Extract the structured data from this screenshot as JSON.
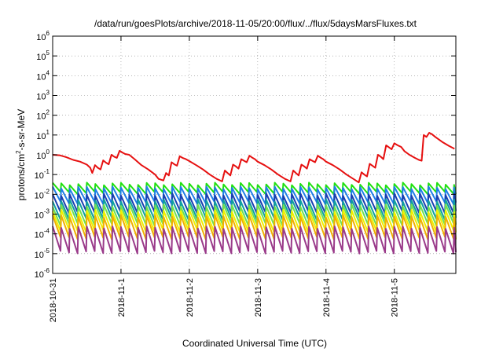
{
  "chart_data": {
    "type": "line",
    "title": "/data/run/goesPlots/archive/2018-11-05/20:00/flux/../flux/5daysMarsFluxes.txt",
    "xlabel": "Coordinated Universal Time (UTC)",
    "ylabel_parts": [
      "protons/cm",
      "2",
      "-s-sr-MeV"
    ],
    "yscale": "log",
    "ylim_exp": [
      -6,
      6
    ],
    "y_ticks": [
      {
        "base": "10",
        "exp": "-6"
      },
      {
        "base": "10",
        "exp": "-5"
      },
      {
        "base": "10",
        "exp": "-4"
      },
      {
        "base": "10",
        "exp": "-3"
      },
      {
        "base": "10",
        "exp": "-2"
      },
      {
        "base": "10",
        "exp": "-1"
      },
      {
        "base": "10",
        "exp": "0"
      },
      {
        "base": "10",
        "exp": "1"
      },
      {
        "base": "10",
        "exp": "2"
      },
      {
        "base": "10",
        "exp": "3"
      },
      {
        "base": "10",
        "exp": "4"
      },
      {
        "base": "10",
        "exp": "5"
      },
      {
        "base": "10",
        "exp": "6"
      }
    ],
    "x_ticks": [
      "2018-10-31",
      "2018-11-1",
      "2018-11-2",
      "2018-11-3",
      "2018-11-4",
      "2018-11-5"
    ],
    "xlim_days": [
      0,
      5.9
    ],
    "grid": true,
    "colors": [
      "#e61010",
      "#20e010",
      "#1f7fe6",
      "#1a3fb0",
      "#10a0a0",
      "#70e050",
      "#f0f000",
      "#f0b000",
      "#9a3a8a"
    ],
    "series": [
      {
        "color": "#e61010",
        "width": 2,
        "points": [
          [
            0.0,
            1.0
          ],
          [
            0.1,
            0.95
          ],
          [
            0.2,
            0.75
          ],
          [
            0.3,
            0.55
          ],
          [
            0.4,
            0.45
          ],
          [
            0.5,
            0.32
          ],
          [
            0.55,
            0.22
          ],
          [
            0.58,
            0.12
          ],
          [
            0.62,
            0.3
          ],
          [
            0.66,
            0.22
          ],
          [
            0.7,
            0.18
          ],
          [
            0.74,
            0.52
          ],
          [
            0.78,
            0.4
          ],
          [
            0.82,
            0.33
          ],
          [
            0.86,
            1.0
          ],
          [
            0.9,
            0.8
          ],
          [
            0.94,
            0.7
          ],
          [
            0.98,
            1.6
          ],
          [
            1.02,
            1.3
          ],
          [
            1.06,
            1.1
          ],
          [
            1.12,
            1.0
          ],
          [
            1.2,
            0.6
          ],
          [
            1.3,
            0.3
          ],
          [
            1.4,
            0.18
          ],
          [
            1.5,
            0.1
          ],
          [
            1.55,
            0.06
          ],
          [
            1.62,
            0.05
          ],
          [
            1.66,
            0.12
          ],
          [
            1.7,
            0.09
          ],
          [
            1.74,
            0.42
          ],
          [
            1.78,
            0.33
          ],
          [
            1.82,
            0.28
          ],
          [
            1.86,
            0.85
          ],
          [
            1.9,
            0.7
          ],
          [
            1.95,
            0.6
          ],
          [
            2.0,
            0.48
          ],
          [
            2.1,
            0.3
          ],
          [
            2.2,
            0.18
          ],
          [
            2.3,
            0.1
          ],
          [
            2.4,
            0.06
          ],
          [
            2.48,
            0.045
          ],
          [
            2.52,
            0.16
          ],
          [
            2.56,
            0.12
          ],
          [
            2.6,
            0.09
          ],
          [
            2.64,
            0.32
          ],
          [
            2.68,
            0.26
          ],
          [
            2.72,
            0.2
          ],
          [
            2.76,
            0.6
          ],
          [
            2.8,
            0.5
          ],
          [
            2.84,
            0.42
          ],
          [
            2.88,
            0.9
          ],
          [
            2.92,
            0.72
          ],
          [
            2.96,
            0.6
          ],
          [
            3.0,
            0.45
          ],
          [
            3.1,
            0.3
          ],
          [
            3.2,
            0.18
          ],
          [
            3.3,
            0.1
          ],
          [
            3.4,
            0.06
          ],
          [
            3.48,
            0.045
          ],
          [
            3.52,
            0.16
          ],
          [
            3.56,
            0.12
          ],
          [
            3.6,
            0.09
          ],
          [
            3.64,
            0.32
          ],
          [
            3.68,
            0.26
          ],
          [
            3.72,
            0.2
          ],
          [
            3.76,
            0.6
          ],
          [
            3.8,
            0.5
          ],
          [
            3.84,
            0.42
          ],
          [
            3.88,
            0.9
          ],
          [
            3.92,
            0.72
          ],
          [
            3.96,
            0.6
          ],
          [
            4.0,
            0.45
          ],
          [
            4.1,
            0.3
          ],
          [
            4.2,
            0.18
          ],
          [
            4.3,
            0.1
          ],
          [
            4.4,
            0.06
          ],
          [
            4.48,
            0.04
          ],
          [
            4.52,
            0.13
          ],
          [
            4.56,
            0.1
          ],
          [
            4.6,
            0.08
          ],
          [
            4.64,
            0.35
          ],
          [
            4.68,
            0.28
          ],
          [
            4.72,
            0.22
          ],
          [
            4.76,
            1.0
          ],
          [
            4.8,
            0.8
          ],
          [
            4.84,
            0.6
          ],
          [
            4.88,
            3.0
          ],
          [
            4.92,
            2.4
          ],
          [
            4.96,
            1.9
          ],
          [
            5.0,
            3.8
          ],
          [
            5.05,
            3.0
          ],
          [
            5.1,
            2.5
          ],
          [
            5.15,
            1.5
          ],
          [
            5.22,
            1.0
          ],
          [
            5.3,
            0.7
          ],
          [
            5.36,
            0.55
          ],
          [
            5.4,
            0.5
          ],
          [
            5.43,
            10.0
          ],
          [
            5.47,
            8.0
          ],
          [
            5.51,
            13.0
          ],
          [
            5.55,
            11.0
          ],
          [
            5.6,
            8.0
          ],
          [
            5.7,
            4.5
          ],
          [
            5.8,
            2.8
          ],
          [
            5.88,
            2.0
          ]
        ]
      },
      {
        "color": "#20e010",
        "width": 2,
        "base": 0.02,
        "amp": 1.7
      },
      {
        "color": "#1f7fe6",
        "width": 2,
        "base": 0.009,
        "amp": 2.4
      },
      {
        "color": "#1a3fb0",
        "width": 2,
        "base": 0.0035,
        "amp": 2.8
      },
      {
        "color": "#10a0a0",
        "width": 2,
        "base": 0.0017,
        "amp": 2.9
      },
      {
        "color": "#70e050",
        "width": 2,
        "base": 0.0009,
        "amp": 3.0
      },
      {
        "color": "#f0f000",
        "width": 2,
        "base": 0.00045,
        "amp": 3.2
      },
      {
        "color": "#f0b000",
        "width": 2,
        "base": 0.00022,
        "amp": 3.6
      },
      {
        "color": "#9a3a8a",
        "width": 2,
        "base": 5e-05,
        "amp": 4.2
      }
    ]
  }
}
